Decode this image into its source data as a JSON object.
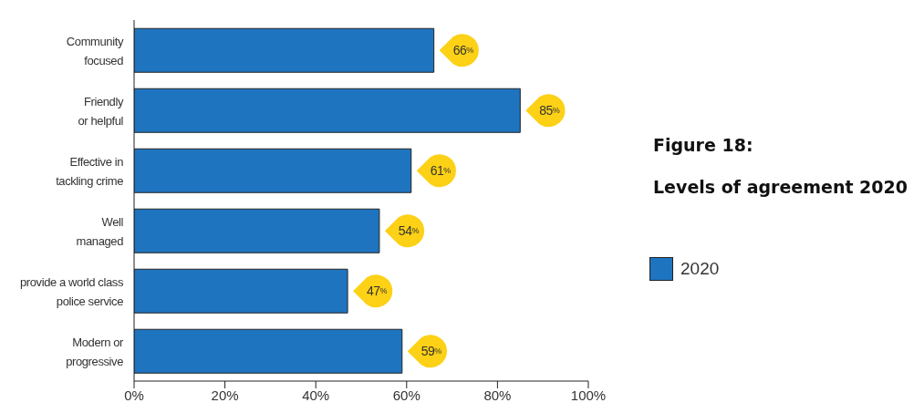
{
  "chart_data": {
    "type": "bar",
    "orientation": "horizontal",
    "title": "Figure 18:",
    "subtitle": "Levels of agreement 2020",
    "categories": [
      "Community\nfocused",
      "Friendly\nor helpful",
      "Effective in\ntackling crime",
      "Well\nmanaged",
      "provide a world class\npolice service",
      "Modern or\nprogressive"
    ],
    "series": [
      {
        "name": "2020",
        "color": "#1f74bf",
        "values": [
          66,
          85,
          61,
          54,
          47,
          59
        ],
        "value_labels": [
          "66%",
          "85%",
          "61%",
          "54%",
          "47%",
          "59%"
        ]
      }
    ],
    "xlim": [
      0,
      100
    ],
    "xticks": [
      {
        "value": 0,
        "label": "0%"
      },
      {
        "value": 20,
        "label": "20%"
      },
      {
        "value": 40,
        "label": "40%"
      },
      {
        "value": 60,
        "label": "60%"
      },
      {
        "value": 80,
        "label": "80%"
      },
      {
        "value": 100,
        "label": "100%"
      }
    ],
    "grid": false,
    "legend": "right"
  }
}
